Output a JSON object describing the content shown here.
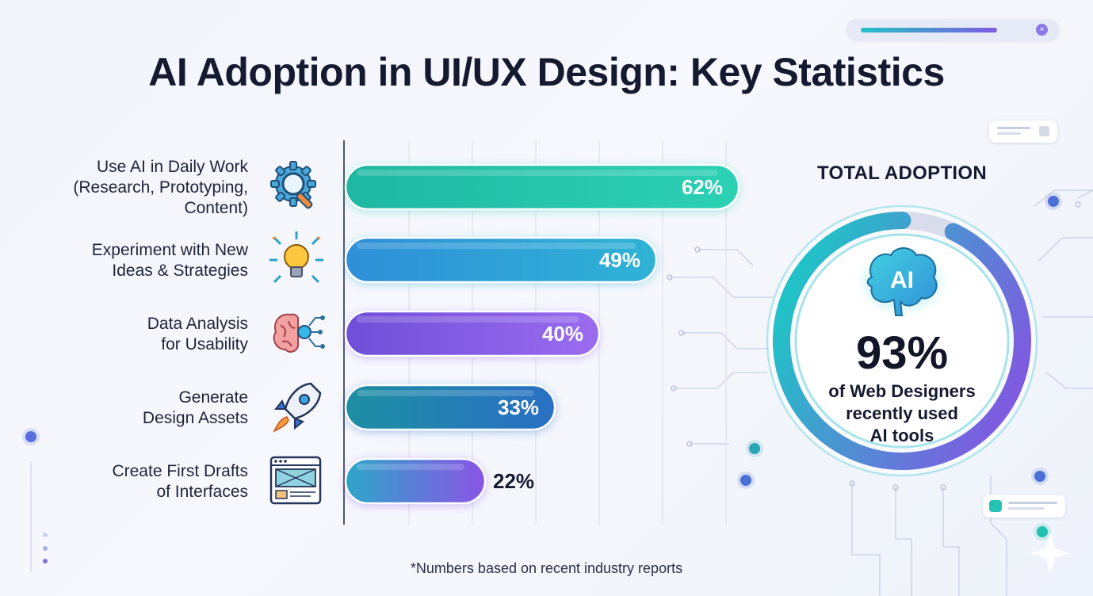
{
  "title": "AI Adoption in UI/UX Design: Key Statistics",
  "footnote": "*Numbers based on recent industry reports",
  "chart_data": [
    {
      "type": "bar",
      "orientation": "horizontal",
      "categories": [
        [
          "Use AI in Daily Work",
          "(Research, Prototyping,",
          "Content)"
        ],
        [
          "Experiment with New",
          "Ideas & Strategies"
        ],
        [
          "Data Analysis",
          "for Usability"
        ],
        [
          "Generate",
          "Design Assets"
        ],
        [
          "Create First Drafts",
          "of Interfaces"
        ]
      ],
      "values": [
        62,
        49,
        40,
        33,
        22
      ],
      "value_labels": [
        "62%",
        "49%",
        "40%",
        "33%",
        "22%"
      ],
      "value_unit": "%",
      "xlim": [
        0,
        100
      ],
      "grid": true,
      "icons": [
        "gear-magnifier-icon",
        "lightbulb-arrows-icon",
        "brain-circuit-icon",
        "rocket-icon",
        "wireframe-window-icon"
      ],
      "colors": [
        [
          "#1fb8a3",
          "#2cd1b4"
        ],
        [
          "#2f8fd8",
          "#2fb3d6"
        ],
        [
          "#6f4fd8",
          "#9b6cf0"
        ],
        [
          "#1d8fa3",
          "#2a6fc4"
        ],
        [
          "#2da6c9",
          "#8a54e6"
        ]
      ]
    },
    {
      "type": "pie",
      "variant": "donut",
      "title": "TOTAL ADOPTION",
      "value": 93,
      "value_label": "93%",
      "caption": [
        "of Web Designers",
        "recently used",
        "AI tools"
      ],
      "badge": "AI",
      "icon": "ai-brain-icon",
      "colors": [
        "#22c1c7",
        "#7d5ce0",
        "#d9dcea"
      ]
    }
  ]
}
